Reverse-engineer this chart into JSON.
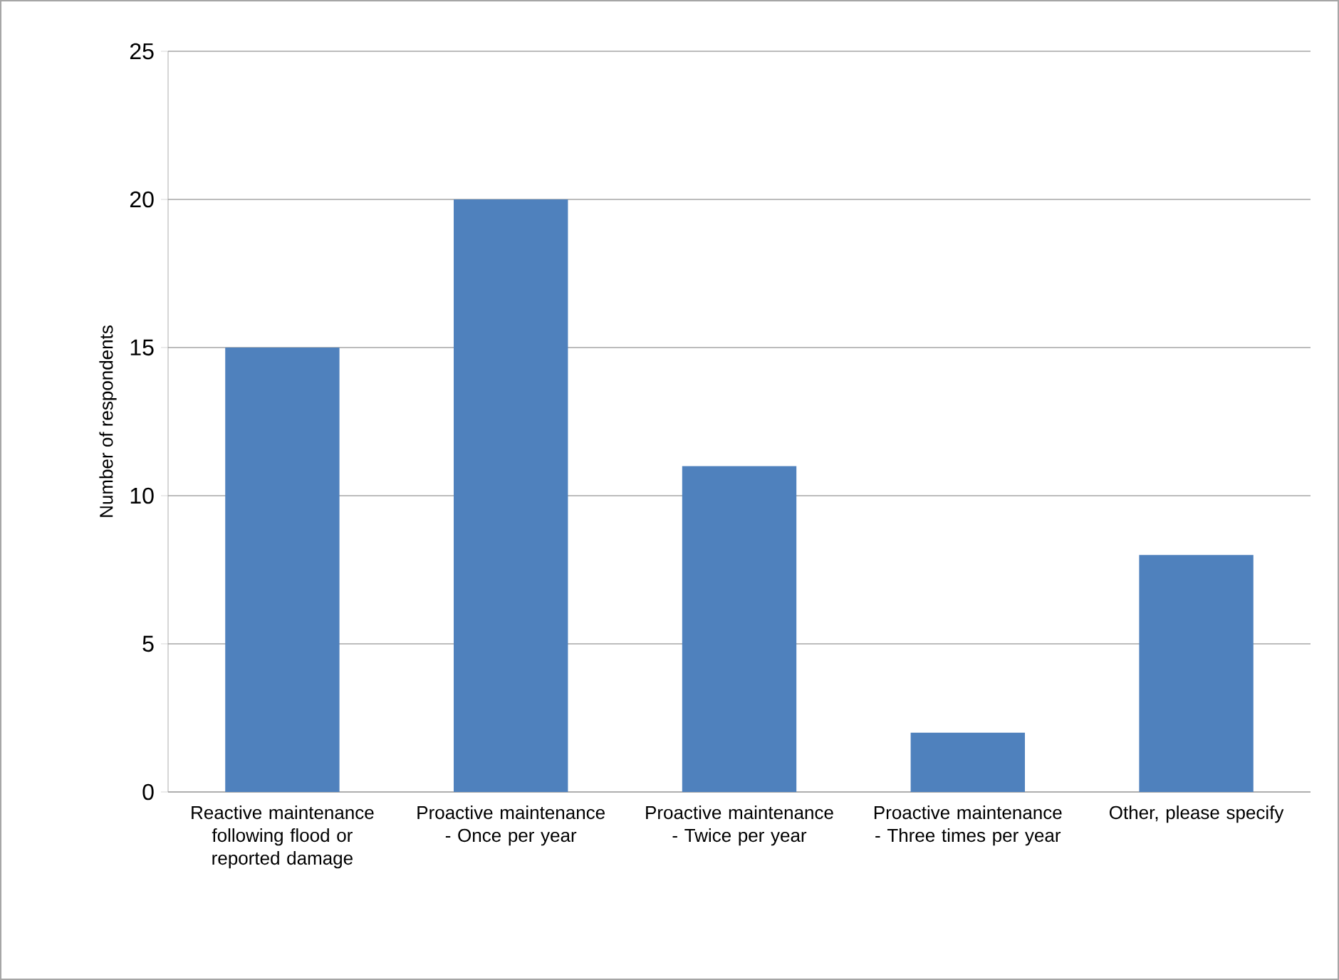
{
  "chart_data": {
    "type": "bar",
    "ylabel": "Number of respondents",
    "categories": [
      "Reactive maintenance following flood or reported damage",
      "Proactive maintenance - Once per year",
      "Proactive maintenance - Twice per year",
      "Proactive maintenance - Three times per year",
      "Other, please specify"
    ],
    "values": [
      15,
      20,
      11,
      2,
      8
    ],
    "color": "#4f81bd",
    "ylim": [
      0,
      25
    ],
    "yticks": [
      0,
      5,
      10,
      15,
      20,
      25
    ],
    "grid": "y"
  }
}
